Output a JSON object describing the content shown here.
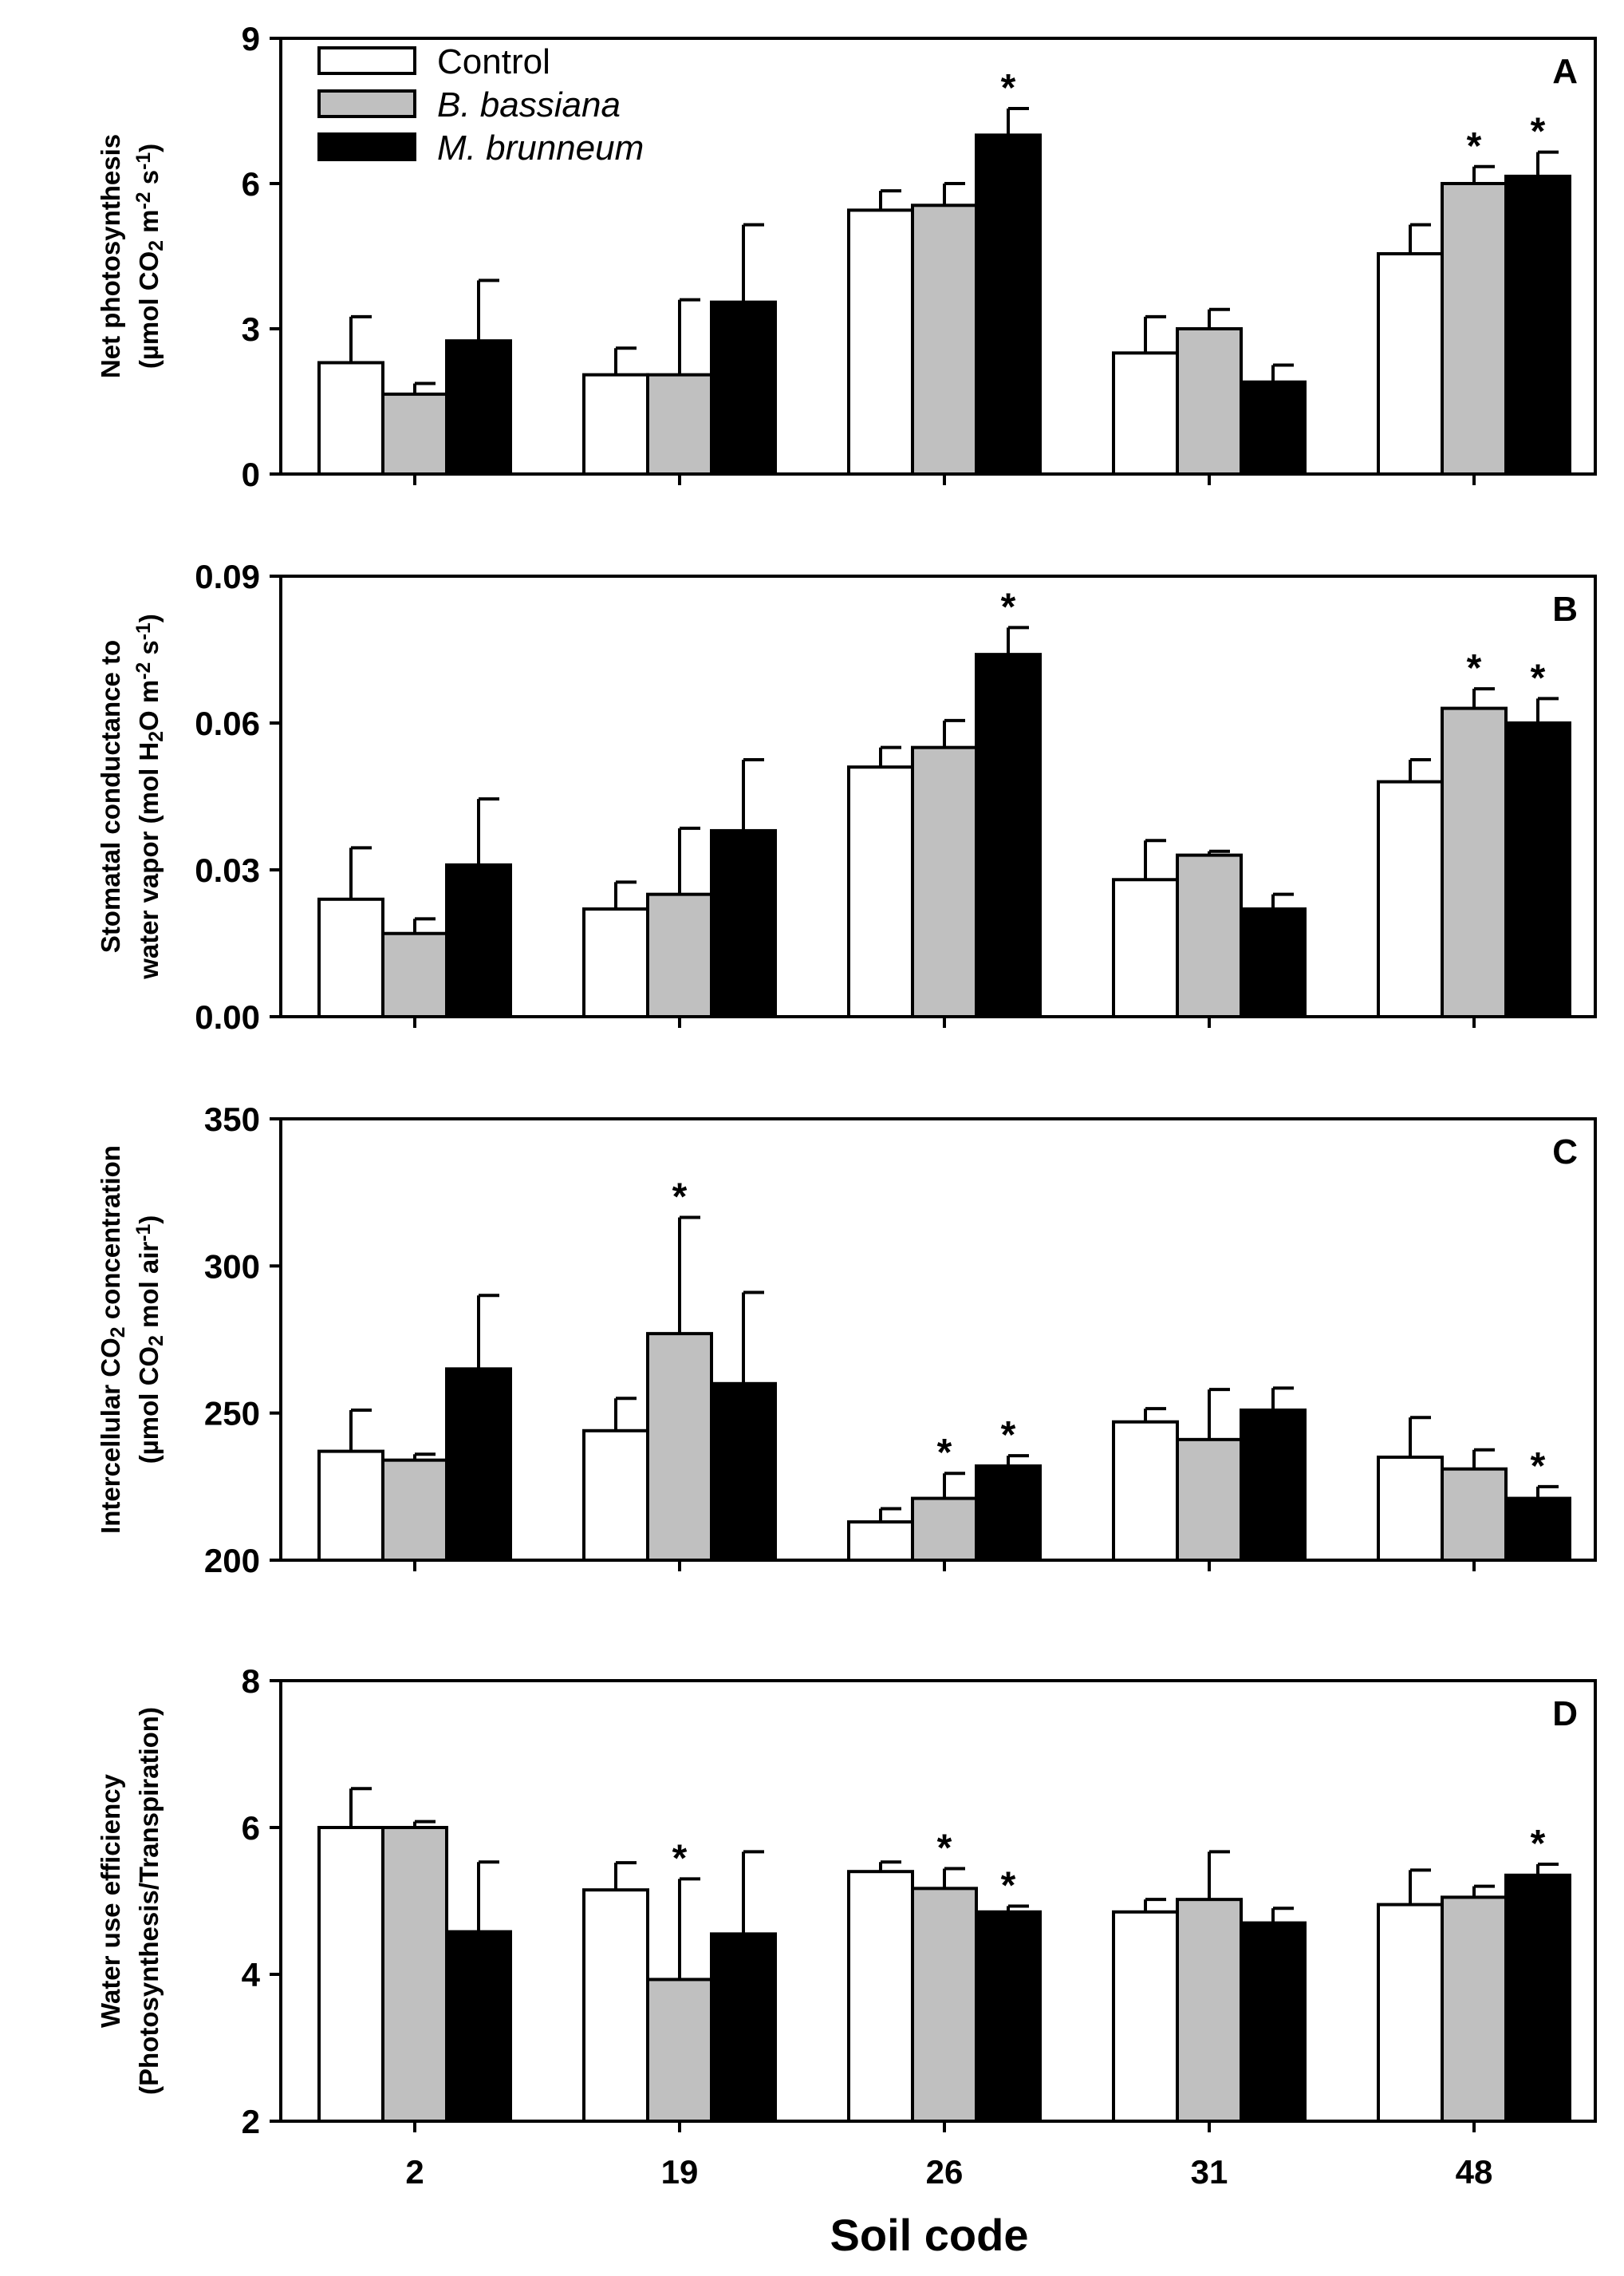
{
  "legend": [
    {
      "label": "Control",
      "italic": false,
      "color": "#ffffff"
    },
    {
      "label": "B. bassiana",
      "italic": true,
      "color": "#c0c0c0"
    },
    {
      "label": "M. brunneum",
      "italic": true,
      "color": "#000000"
    }
  ],
  "x_axis_title": "Soil code",
  "chart_data": [
    {
      "type": "bar",
      "panel": "A",
      "ylabel_line1": "Net photosynthesis",
      "ylabel_line2": "(µmol CO2 m-2 s-1)",
      "ylim": [
        0,
        9
      ],
      "yticks": [
        "0",
        "3",
        "6",
        "9"
      ],
      "categories": [
        "2",
        "19",
        "26",
        "31",
        "48"
      ],
      "series": [
        {
          "name": "Control",
          "values": [
            2.3,
            2.05,
            5.45,
            2.5,
            4.55
          ],
          "errors": [
            0.95,
            0.55,
            0.4,
            0.75,
            0.6
          ],
          "significant": [
            false,
            false,
            false,
            false,
            false
          ]
        },
        {
          "name": "B. bassiana",
          "values": [
            1.65,
            2.05,
            5.55,
            3.0,
            6.0
          ],
          "errors": [
            0.22,
            1.55,
            0.45,
            0.4,
            0.35
          ],
          "significant": [
            false,
            false,
            false,
            false,
            true
          ]
        },
        {
          "name": "M. brunneum",
          "values": [
            2.75,
            3.55,
            7.0,
            1.9,
            6.15
          ],
          "errors": [
            1.25,
            1.6,
            0.55,
            0.35,
            0.5
          ],
          "significant": [
            false,
            false,
            true,
            false,
            true
          ]
        }
      ]
    },
    {
      "type": "bar",
      "panel": "B",
      "ylabel_line1": "Stomatal conductance to",
      "ylabel_line2": "water vapor (mol H2O m-2 s-1)",
      "ylim": [
        0,
        0.09
      ],
      "yticks": [
        "0.00",
        "0.03",
        "0.06",
        "0.09"
      ],
      "categories": [
        "2",
        "19",
        "26",
        "31",
        "48"
      ],
      "series": [
        {
          "name": "Control",
          "values": [
            0.024,
            0.022,
            0.051,
            0.028,
            0.048
          ],
          "errors": [
            0.0105,
            0.0055,
            0.004,
            0.008,
            0.0045
          ],
          "significant": [
            false,
            false,
            false,
            false,
            false
          ]
        },
        {
          "name": "B. bassiana",
          "values": [
            0.017,
            0.025,
            0.055,
            0.033,
            0.063
          ],
          "errors": [
            0.003,
            0.0135,
            0.0055,
            0.0008,
            0.004
          ],
          "significant": [
            false,
            false,
            false,
            false,
            true
          ]
        },
        {
          "name": "M. brunneum",
          "values": [
            0.031,
            0.038,
            0.074,
            0.022,
            0.06
          ],
          "errors": [
            0.0135,
            0.0145,
            0.0055,
            0.003,
            0.005
          ],
          "significant": [
            false,
            false,
            true,
            false,
            true
          ]
        }
      ]
    },
    {
      "type": "bar",
      "panel": "C",
      "ylabel_line1": "Intercellular CO2 concentration",
      "ylabel_line2": "(µmol CO2 mol air-1)",
      "ylim": [
        200,
        350
      ],
      "yticks": [
        "200",
        "250",
        "300",
        "350"
      ],
      "categories": [
        "2",
        "19",
        "26",
        "31",
        "48"
      ],
      "series": [
        {
          "name": "Control",
          "values": [
            237,
            244,
            213,
            247,
            235
          ],
          "errors": [
            14,
            11,
            4.5,
            4.5,
            13.5
          ],
          "significant": [
            false,
            false,
            false,
            false,
            false
          ]
        },
        {
          "name": "B. bassiana",
          "values": [
            234,
            277,
            221,
            241,
            231
          ],
          "errors": [
            2,
            39.5,
            8.5,
            17,
            6.5
          ],
          "significant": [
            false,
            true,
            true,
            false,
            false
          ]
        },
        {
          "name": "M. brunneum",
          "values": [
            265,
            260,
            232,
            251,
            221
          ],
          "errors": [
            25,
            31,
            3.5,
            7.5,
            4
          ],
          "significant": [
            false,
            false,
            true,
            false,
            true
          ]
        }
      ]
    },
    {
      "type": "bar",
      "panel": "D",
      "ylabel_line1": "Water use efficiency",
      "ylabel_line2": "(Photosynthesis/Transpiration)",
      "ylim": [
        2,
        8
      ],
      "yticks": [
        "2",
        "4",
        "6",
        "8"
      ],
      "categories": [
        "2",
        "19",
        "26",
        "31",
        "48"
      ],
      "series": [
        {
          "name": "Control",
          "values": [
            6.0,
            5.15,
            5.4,
            4.85,
            4.95
          ],
          "errors": [
            0.53,
            0.37,
            0.13,
            0.17,
            0.47
          ],
          "significant": [
            false,
            false,
            false,
            false,
            false
          ]
        },
        {
          "name": "B. bassiana",
          "values": [
            6.0,
            3.93,
            5.17,
            5.02,
            5.05
          ],
          "errors": [
            0.08,
            1.37,
            0.27,
            0.65,
            0.15
          ],
          "significant": [
            false,
            true,
            true,
            false,
            false
          ]
        },
        {
          "name": "M. brunneum",
          "values": [
            4.58,
            4.55,
            4.85,
            4.7,
            5.35
          ],
          "errors": [
            0.95,
            1.12,
            0.08,
            0.2,
            0.15
          ],
          "significant": [
            false,
            false,
            true,
            false,
            true
          ]
        }
      ]
    }
  ]
}
